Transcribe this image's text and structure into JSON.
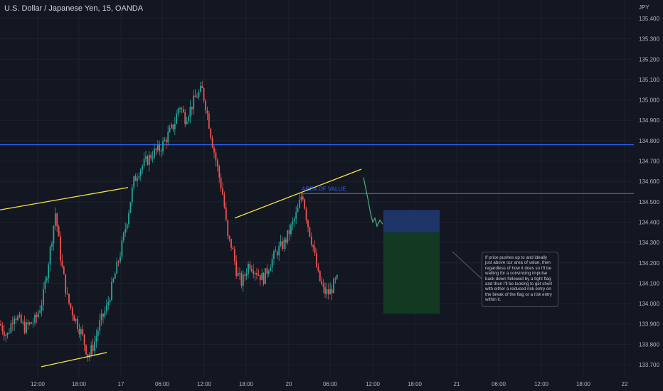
{
  "header": {
    "symbol_title": "U.S. Dollar / Japanese Yen, 15, OANDA"
  },
  "price_axis": {
    "currency": "JPY",
    "labels": [
      "135.400",
      "135.300",
      "135.200",
      "135.100",
      "135.000",
      "134.900",
      "134.800",
      "134.700",
      "134.600",
      "134.500",
      "134.400",
      "134.300",
      "134.200",
      "134.100",
      "134.000",
      "133.900",
      "133.800",
      "133.700"
    ]
  },
  "time_axis": {
    "labels": [
      "12:00",
      "18:00",
      "17",
      "06:00",
      "12:00",
      "18:00",
      "20",
      "06:00",
      "12:00",
      "18:00",
      "21",
      "06:00",
      "12:00",
      "18:00",
      "22"
    ]
  },
  "levels": {
    "resistance_price": 134.78,
    "area_of_value_price": 134.54,
    "area_of_value_label": "AREA OF VALUE"
  },
  "trade_setup": {
    "entry": 134.35,
    "stop": 134.46,
    "target": 133.95
  },
  "annotation": {
    "text": "If price pushes up to and ideally just above our area of value, then regardless of how it does so I'll be waiting for a convincing impulse back down followed by a tight flag and then I'll be looking to get short with either a reduced risk entry on the break of the flag or a risk entry within it."
  },
  "colors": {
    "background": "#131722",
    "bull_candle": "#26a69a",
    "bear_candle": "#ef5350",
    "level_line": "#2962ff",
    "trend_line": "#f5e642",
    "projection": "#4caf7a",
    "stop_zone": "#1e3466",
    "target_zone": "#123a22",
    "axis_text": "#b2b5be"
  },
  "chart_data": {
    "type": "candlestick",
    "title": "U.S. Dollar / Japanese Yen, 15, OANDA",
    "ylim": [
      133.66,
      135.46
    ],
    "price_path": [
      [
        0,
        133.9
      ],
      [
        10,
        133.84
      ],
      [
        20,
        133.95
      ],
      [
        35,
        133.88
      ],
      [
        50,
        133.92
      ],
      [
        60,
        134.02
      ],
      [
        70,
        134.25
      ],
      [
        78,
        134.45
      ],
      [
        86,
        134.2
      ],
      [
        95,
        134.02
      ],
      [
        105,
        133.93
      ],
      [
        115,
        133.85
      ],
      [
        124,
        133.74
      ],
      [
        132,
        133.8
      ],
      [
        140,
        133.9
      ],
      [
        150,
        133.98
      ],
      [
        160,
        134.12
      ],
      [
        170,
        134.26
      ],
      [
        180,
        134.44
      ],
      [
        188,
        134.6
      ],
      [
        196,
        134.66
      ],
      [
        206,
        134.7
      ],
      [
        215,
        134.74
      ],
      [
        225,
        134.76
      ],
      [
        235,
        134.82
      ],
      [
        245,
        134.88
      ],
      [
        252,
        134.98
      ],
      [
        260,
        134.91
      ],
      [
        268,
        134.96
      ],
      [
        276,
        135.02
      ],
      [
        284,
        135.05
      ],
      [
        290,
        134.96
      ],
      [
        298,
        134.8
      ],
      [
        306,
        134.66
      ],
      [
        314,
        134.52
      ],
      [
        320,
        134.32
      ],
      [
        326,
        134.28
      ],
      [
        333,
        134.15
      ],
      [
        340,
        134.1
      ],
      [
        350,
        134.2
      ],
      [
        360,
        134.16
      ],
      [
        370,
        134.12
      ],
      [
        380,
        134.2
      ],
      [
        390,
        134.26
      ],
      [
        400,
        134.3
      ],
      [
        410,
        134.38
      ],
      [
        418,
        134.45
      ],
      [
        425,
        134.55
      ],
      [
        432,
        134.4
      ],
      [
        440,
        134.28
      ],
      [
        447,
        134.14
      ],
      [
        455,
        134.06
      ],
      [
        463,
        134.05
      ],
      [
        470,
        134.1
      ],
      [
        475,
        134.12
      ]
    ],
    "projection_path": [
      [
        511,
        134.62
      ],
      [
        515,
        134.55
      ],
      [
        518,
        134.5
      ],
      [
        521,
        134.44
      ],
      [
        524,
        134.4
      ],
      [
        527,
        134.42
      ],
      [
        530,
        134.38
      ],
      [
        534,
        134.41
      ],
      [
        538,
        134.39
      ]
    ],
    "trend_lines": [
      {
        "x1": 0,
        "y1": 134.46,
        "x2": 180,
        "y2": 134.57
      },
      {
        "x1": 58,
        "y1": 133.69,
        "x2": 150,
        "y2": 133.76
      },
      {
        "x1": 330,
        "y1": 134.42,
        "x2": 508,
        "y2": 134.66
      }
    ]
  }
}
